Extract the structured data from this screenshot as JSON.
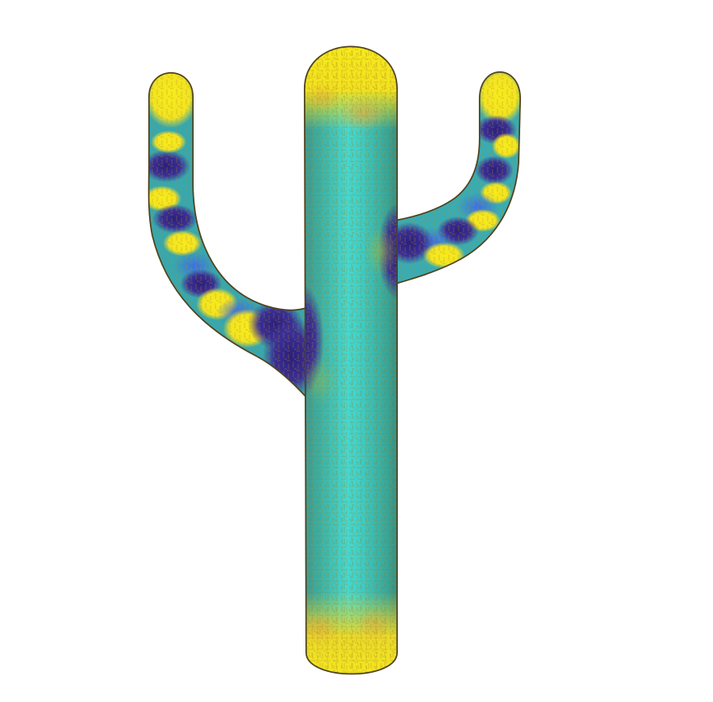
{
  "scene": {
    "subject": "cactus-mesh",
    "background_color": "#ffffff",
    "colormap": [
      "#3b2a8f",
      "#3a5fd0",
      "#2aa9c8",
      "#38c0b0",
      "#bcc43a",
      "#f5e81c"
    ],
    "outline_color": "#6b5a22",
    "glyph_color": "#d9a21b"
  }
}
